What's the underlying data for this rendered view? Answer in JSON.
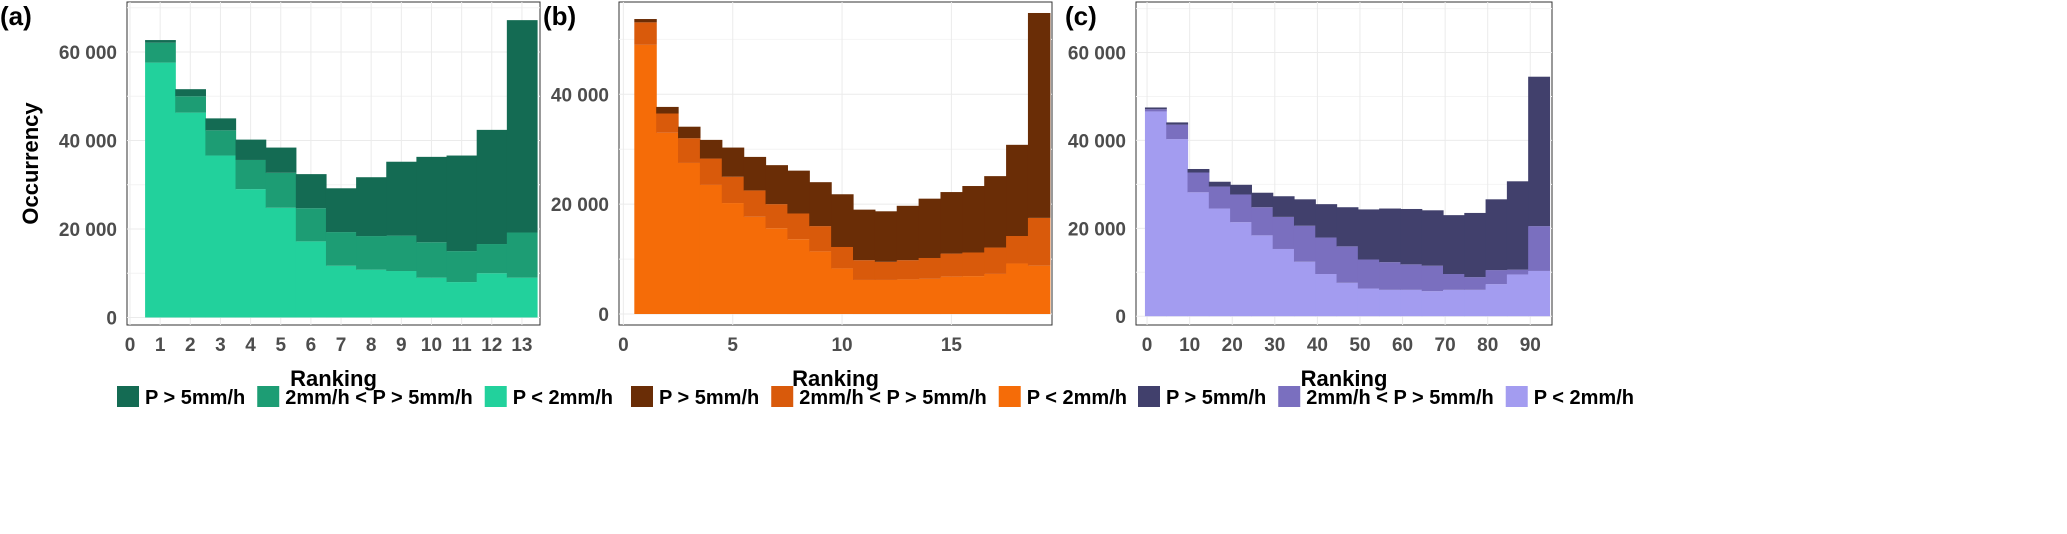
{
  "chart_data": [
    {
      "type": "bar",
      "stacked": true,
      "panel_label": "(a)",
      "xlabel": "Ranking",
      "ylabel": "Occurrency",
      "x_ticks": [
        0,
        1,
        2,
        3,
        4,
        5,
        6,
        7,
        8,
        9,
        10,
        11,
        12,
        13
      ],
      "y_ticks": [
        0,
        20000,
        40000,
        60000
      ],
      "y_tick_labels": [
        "0",
        "20 000",
        "40 000",
        "60 000"
      ],
      "xlim": [
        -0.1,
        13.6
      ],
      "ylim": [
        -1700,
        71300
      ],
      "grid": true,
      "legend_position": "bottom",
      "categories": [
        1,
        2,
        3,
        4,
        5,
        6,
        7,
        8,
        9,
        10,
        11,
        12,
        13
      ],
      "series": [
        {
          "name": "P < 2mm/h",
          "color": "#22d19c",
          "values": [
            57600,
            46300,
            36600,
            29000,
            24800,
            17200,
            11700,
            10800,
            10500,
            9000,
            8000,
            10000,
            9000
          ]
        },
        {
          "name": "2mm/h < P > 5mm/h",
          "color": "#1d9d74",
          "values": [
            4500,
            3700,
            5700,
            6600,
            7900,
            7500,
            7600,
            7600,
            8000,
            8000,
            7000,
            6600,
            10200
          ]
        },
        {
          "name": "P > 5mm/h",
          "color": "#146b53",
          "values": [
            600,
            1600,
            2700,
            4600,
            5700,
            7700,
            9900,
            13300,
            16700,
            19300,
            21600,
            25800,
            48000
          ]
        }
      ]
    },
    {
      "type": "bar",
      "stacked": true,
      "panel_label": "(b)",
      "xlabel": "Ranking",
      "ylabel": "",
      "x_ticks": [
        0,
        5,
        10,
        15
      ],
      "y_ticks": [
        0,
        20000,
        40000
      ],
      "y_tick_labels": [
        "0",
        "20 000",
        "40 000"
      ],
      "xlim": [
        -0.2,
        19.6
      ],
      "ylim": [
        -2000,
        56800
      ],
      "grid": true,
      "legend_position": "bottom",
      "categories": [
        1,
        2,
        3,
        4,
        5,
        6,
        7,
        8,
        9,
        10,
        11,
        12,
        13,
        14,
        15,
        16,
        17,
        18,
        19
      ],
      "series": [
        {
          "name": "P < 2mm/h",
          "color": "#f56c08",
          "values": [
            49000,
            33000,
            27500,
            23500,
            20200,
            17700,
            15600,
            13600,
            11400,
            8300,
            6200,
            6200,
            6300,
            6400,
            6800,
            6900,
            7300,
            9200,
            8800
          ]
        },
        {
          "name": "2mm/h < P > 5mm/h",
          "color": "#d95a0b",
          "values": [
            4100,
            3500,
            4500,
            4800,
            4800,
            4800,
            4400,
            4700,
            4600,
            3900,
            3600,
            3300,
            3500,
            3800,
            4200,
            4300,
            4800,
            5000,
            8700
          ]
        },
        {
          "name": "P > 5mm/h",
          "color": "#6a2d06",
          "values": [
            600,
            1200,
            2100,
            3400,
            5300,
            6100,
            7100,
            7800,
            8000,
            9600,
            9200,
            9200,
            9900,
            10800,
            11200,
            12100,
            13000,
            16600,
            37300
          ]
        }
      ]
    },
    {
      "type": "bar",
      "stacked": true,
      "panel_label": "(c)",
      "xlabel": "Ranking",
      "ylabel": "",
      "x_ticks": [
        0,
        10,
        20,
        30,
        40,
        50,
        60,
        70,
        80,
        90
      ],
      "y_ticks": [
        0,
        20000,
        40000,
        60000
      ],
      "y_tick_labels": [
        "0",
        "20 000",
        "40 000",
        "60 000"
      ],
      "xlim": [
        -2.6,
        95.1
      ],
      "ylim": [
        -2000,
        71500
      ],
      "grid": true,
      "legend_position": "bottom",
      "categories": [
        2,
        7,
        12,
        17,
        22,
        27,
        32,
        37,
        42,
        47,
        52,
        57,
        62,
        67,
        72,
        77,
        82,
        87,
        92
      ],
      "series": [
        {
          "name": "P < 2mm/h",
          "color": "#a39cf0",
          "values": [
            46600,
            40300,
            28200,
            24500,
            21400,
            18400,
            15300,
            12400,
            9600,
            7600,
            6300,
            6000,
            6000,
            5700,
            6000,
            6000,
            7300,
            9500,
            10300
          ]
        },
        {
          "name": "2mm/h < P > 5mm/h",
          "color": "#7a6fbf",
          "values": [
            500,
            3300,
            4500,
            5000,
            6300,
            6400,
            7300,
            8200,
            8300,
            8300,
            6600,
            6300,
            5800,
            5800,
            3600,
            2900,
            3200,
            1100,
            10200
          ]
        },
        {
          "name": "P > 5mm/h",
          "color": "#41406c",
          "values": [
            400,
            500,
            800,
            1100,
            2200,
            3300,
            4700,
            6000,
            7600,
            8900,
            11400,
            12200,
            12600,
            12600,
            13400,
            14600,
            16100,
            20100,
            34000
          ]
        }
      ]
    }
  ]
}
